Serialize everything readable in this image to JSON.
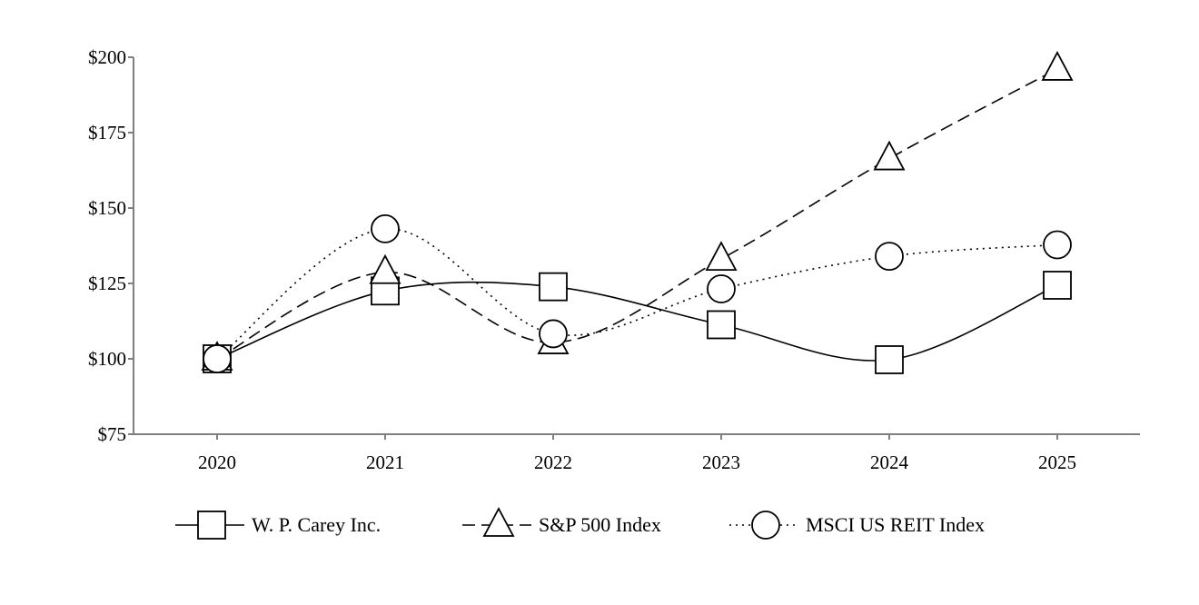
{
  "chart_data": {
    "type": "line",
    "title": "",
    "xlabel": "",
    "ylabel": "",
    "categories": [
      "2020",
      "2021",
      "2022",
      "2023",
      "2024",
      "2025"
    ],
    "ylim": [
      75,
      200
    ],
    "yticks": [
      75,
      100,
      125,
      150,
      175,
      200
    ],
    "ytick_labels": [
      "$75",
      "$100",
      "$125",
      "$150",
      "$175",
      "$200"
    ],
    "grid": false,
    "legend_position": "bottom",
    "series": [
      {
        "name": "W. P. Carey Inc.",
        "marker": "square",
        "dash": "solid",
        "values": [
          100,
          122.5,
          123.9,
          111.3,
          99.7,
          124.4
        ]
      },
      {
        "name": "S&P 500 Index",
        "marker": "triangle",
        "dash": "dashed",
        "values": [
          100,
          128.7,
          105.4,
          133.1,
          166.4,
          196.1
        ]
      },
      {
        "name": "MSCI US REIT Index",
        "marker": "circle",
        "dash": "dotted",
        "values": [
          100,
          143.1,
          108.3,
          123.2,
          134.0,
          137.8
        ]
      }
    ]
  }
}
